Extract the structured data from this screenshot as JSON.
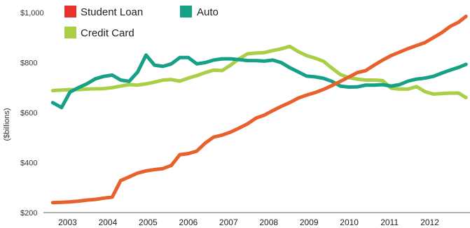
{
  "chart_data": {
    "type": "line",
    "ylabel": "($billions)",
    "ylim": [
      200,
      1000
    ],
    "yticks": [
      "$200",
      "$400",
      "$600",
      "$800",
      "$1,000"
    ],
    "ytick_values": [
      200,
      400,
      600,
      800,
      1000
    ],
    "xticks": [
      "2003",
      "2004",
      "2005",
      "2006",
      "2007",
      "2008",
      "2009",
      "2010",
      "2011",
      "2012"
    ],
    "xtick_values": [
      2003,
      2004,
      2005,
      2006,
      2007,
      2008,
      2009,
      2010,
      2011,
      2012
    ],
    "xlim": [
      2002.4,
      2013.0
    ],
    "grid": false,
    "legend_position": "top-left",
    "series": [
      {
        "name": "Student Loan",
        "color": "#e8602c",
        "x": [
          2002.63,
          2002.85,
          2003.06,
          2003.27,
          2003.48,
          2003.69,
          2003.9,
          2004.11,
          2004.32,
          2004.53,
          2004.74,
          2004.95,
          2005.16,
          2005.37,
          2005.58,
          2005.79,
          2006.0,
          2006.21,
          2006.42,
          2006.63,
          2006.84,
          2007.05,
          2007.26,
          2007.47,
          2007.68,
          2007.89,
          2008.1,
          2008.31,
          2008.52,
          2008.73,
          2008.94,
          2009.15,
          2009.36,
          2009.57,
          2009.78,
          2009.99,
          2010.2,
          2010.41,
          2010.62,
          2010.83,
          2011.04,
          2011.25,
          2011.46,
          2011.67,
          2011.88,
          2012.09,
          2012.3,
          2012.51,
          2012.72,
          2012.9
        ],
        "values": [
          240,
          241,
          243,
          246,
          250,
          253,
          258,
          262,
          328,
          343,
          358,
          367,
          372,
          376,
          389,
          432,
          436,
          446,
          478,
          502,
          510,
          522,
          538,
          555,
          578,
          590,
          608,
          625,
          640,
          658,
          670,
          680,
          693,
          708,
          725,
          742,
          760,
          768,
          790,
          810,
          828,
          842,
          856,
          868,
          880,
          900,
          920,
          945,
          962,
          985
        ]
      },
      {
        "name": "Auto",
        "color": "#16a085",
        "x": [
          2002.63,
          2002.85,
          2003.06,
          2003.27,
          2003.48,
          2003.69,
          2003.9,
          2004.11,
          2004.32,
          2004.53,
          2004.74,
          2004.95,
          2005.16,
          2005.37,
          2005.58,
          2005.79,
          2006.0,
          2006.21,
          2006.42,
          2006.63,
          2006.84,
          2007.05,
          2007.26,
          2007.47,
          2007.68,
          2007.89,
          2008.1,
          2008.31,
          2008.52,
          2008.73,
          2008.94,
          2009.15,
          2009.36,
          2009.57,
          2009.78,
          2009.99,
          2010.2,
          2010.41,
          2010.62,
          2010.83,
          2011.04,
          2011.25,
          2011.46,
          2011.67,
          2011.88,
          2012.09,
          2012.3,
          2012.51,
          2012.72,
          2012.9
        ],
        "values": [
          640,
          620,
          682,
          700,
          715,
          735,
          745,
          750,
          730,
          725,
          762,
          830,
          790,
          785,
          795,
          820,
          820,
          795,
          800,
          810,
          815,
          815,
          812,
          808,
          808,
          806,
          810,
          800,
          780,
          763,
          746,
          743,
          737,
          725,
          706,
          702,
          703,
          710,
          710,
          712,
          706,
          712,
          726,
          734,
          738,
          745,
          758,
          770,
          781,
          793
        ]
      },
      {
        "name": "Credit Card",
        "color": "#a8cf45",
        "x": [
          2002.63,
          2002.85,
          2003.06,
          2003.27,
          2003.48,
          2003.69,
          2003.9,
          2004.11,
          2004.32,
          2004.53,
          2004.74,
          2004.95,
          2005.16,
          2005.37,
          2005.58,
          2005.79,
          2006.0,
          2006.21,
          2006.42,
          2006.63,
          2006.84,
          2007.05,
          2007.26,
          2007.47,
          2007.68,
          2007.89,
          2008.1,
          2008.31,
          2008.52,
          2008.73,
          2008.94,
          2009.15,
          2009.36,
          2009.57,
          2009.78,
          2009.99,
          2010.2,
          2010.41,
          2010.62,
          2010.83,
          2011.04,
          2011.25,
          2011.46,
          2011.67,
          2011.88,
          2012.09,
          2012.3,
          2012.51,
          2012.72,
          2012.9
        ],
        "values": [
          688,
          690,
          692,
          692,
          694,
          695,
          696,
          700,
          706,
          712,
          710,
          715,
          722,
          730,
          732,
          726,
          738,
          748,
          760,
          770,
          768,
          790,
          815,
          835,
          838,
          840,
          848,
          855,
          865,
          844,
          828,
          818,
          805,
          778,
          752,
          740,
          734,
          730,
          730,
          728,
          698,
          694,
          694,
          704,
          684,
          674,
          676,
          678,
          678,
          660
        ]
      }
    ]
  }
}
